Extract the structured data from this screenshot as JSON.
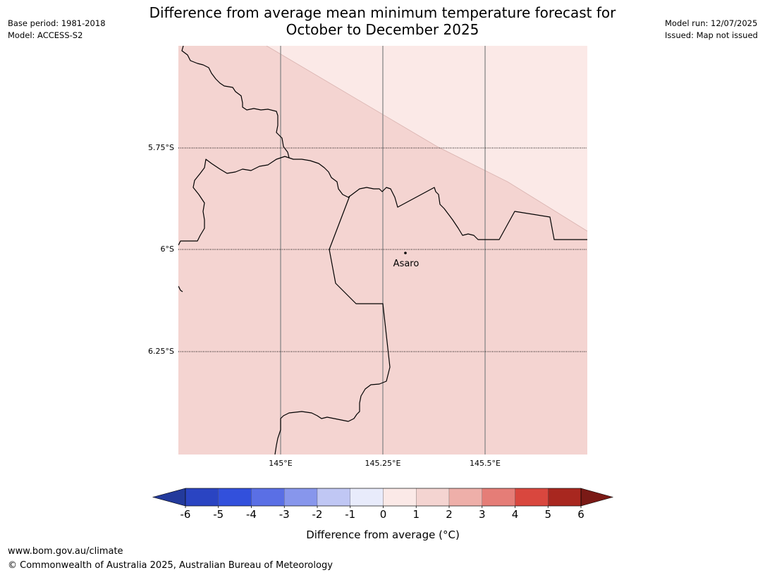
{
  "title_line1": "Difference from average mean minimum temperature forecast for",
  "title_line2": "October to December 2025",
  "base_period": "Base period: 1981-2018",
  "model": "Model: ACCESS-S2",
  "model_run": "Model run: 12/07/2025",
  "issued": "Issued: Map not issued",
  "footer_url": "www.bom.gov.au/climate",
  "footer_copyright": "© Commonwealth of Australia 2025, Australian Bureau of Meteorology",
  "map": {
    "location_label": "Asaro",
    "lat_labels": [
      "5.75°S",
      "6°S",
      "6.25°S"
    ],
    "lon_labels": [
      "145°E",
      "145.25°E",
      "145.5°E"
    ],
    "fill_colors": {
      "band_0_to_1": "#fbe9e7",
      "band_1_to_2": "#f4d4d1"
    }
  },
  "colorbar": {
    "label": "Difference from average (°C)",
    "ticks": [
      "-6",
      "-5",
      "-4",
      "-3",
      "-2",
      "-1",
      "0",
      "1",
      "2",
      "3",
      "4",
      "5",
      "6"
    ],
    "colors": [
      "#233a9c",
      "#2a44c2",
      "#3250dc",
      "#5a6fe5",
      "#8796ec",
      "#c0c7f4",
      "#e8ebfb",
      "#fbe9e7",
      "#f4d4d1",
      "#eeafa9",
      "#e57d77",
      "#d9473e",
      "#a8271f",
      "#7a1a16"
    ]
  }
}
